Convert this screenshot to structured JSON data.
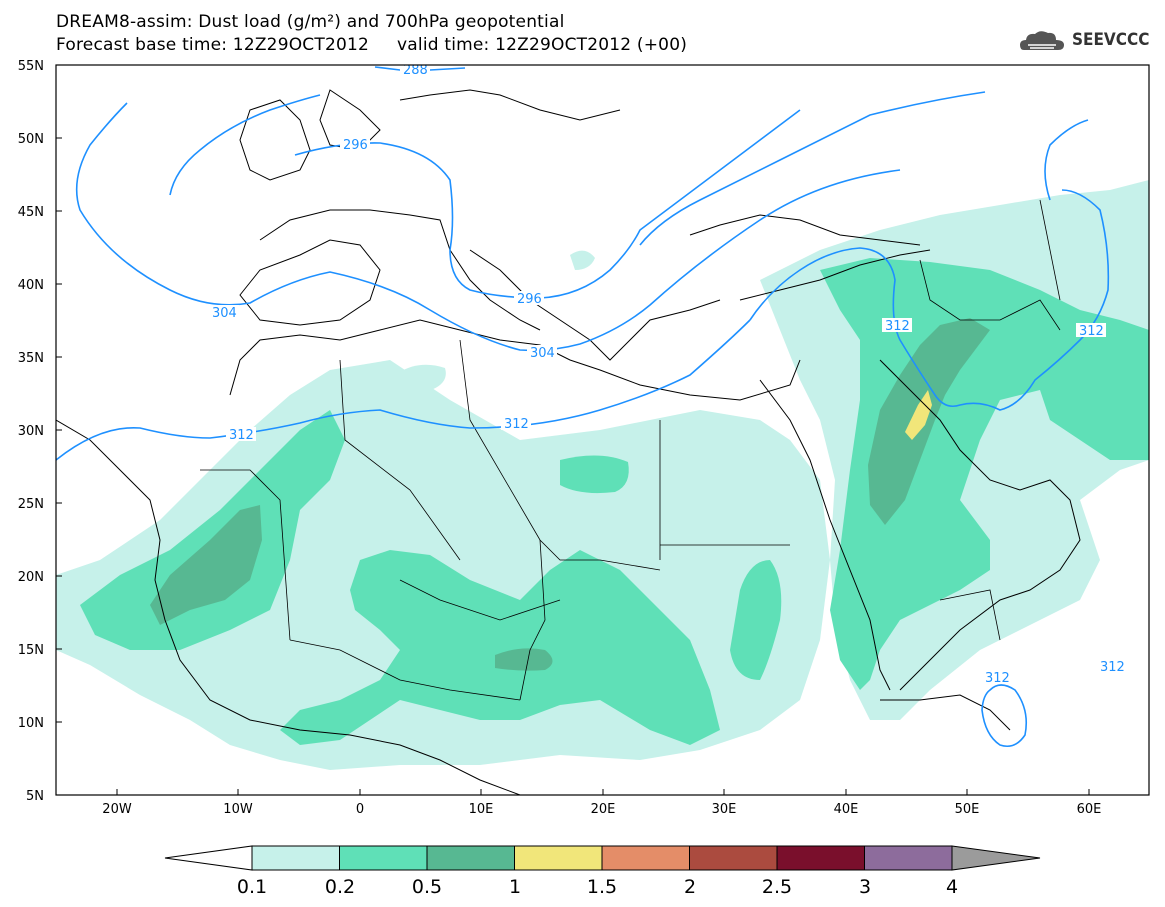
{
  "header": {
    "title": "DREAM8-assim: Dust load (g/m²) and 700hPa geopotential",
    "subtitle": "Forecast base time: 12Z29OCT2012     valid time: 12Z29OCT2012 (+00)",
    "brand": "SEEVCCC",
    "brand_icon": "cloud-logo-icon"
  },
  "axes": {
    "lat_labels": [
      "55N",
      "50N",
      "45N",
      "40N",
      "35N",
      "30N",
      "25N",
      "20N",
      "15N",
      "10N",
      "5N"
    ],
    "lon_labels": [
      "20W",
      "10W",
      "0",
      "10E",
      "20E",
      "30E",
      "40E",
      "50E",
      "60E"
    ]
  },
  "contours": {
    "color": "#1e90ff",
    "labels": [
      "288",
      "296",
      "296",
      "304",
      "304",
      "312",
      "312",
      "312",
      "312",
      "312",
      "312"
    ]
  },
  "colorbar": {
    "ticks": [
      "0.1",
      "0.2",
      "0.5",
      "1",
      "1.5",
      "2",
      "2.5",
      "3",
      "4"
    ],
    "colors": [
      "#c6f1ea",
      "#5fe0b7",
      "#57b892",
      "#f1e67a",
      "#e48d68",
      "#ab4b3f",
      "#7a0f2c",
      "#8d6c9c",
      "#9b9b9b"
    ],
    "low_end_color": "#ffffff",
    "high_end_color": "#9b9b9b"
  }
}
